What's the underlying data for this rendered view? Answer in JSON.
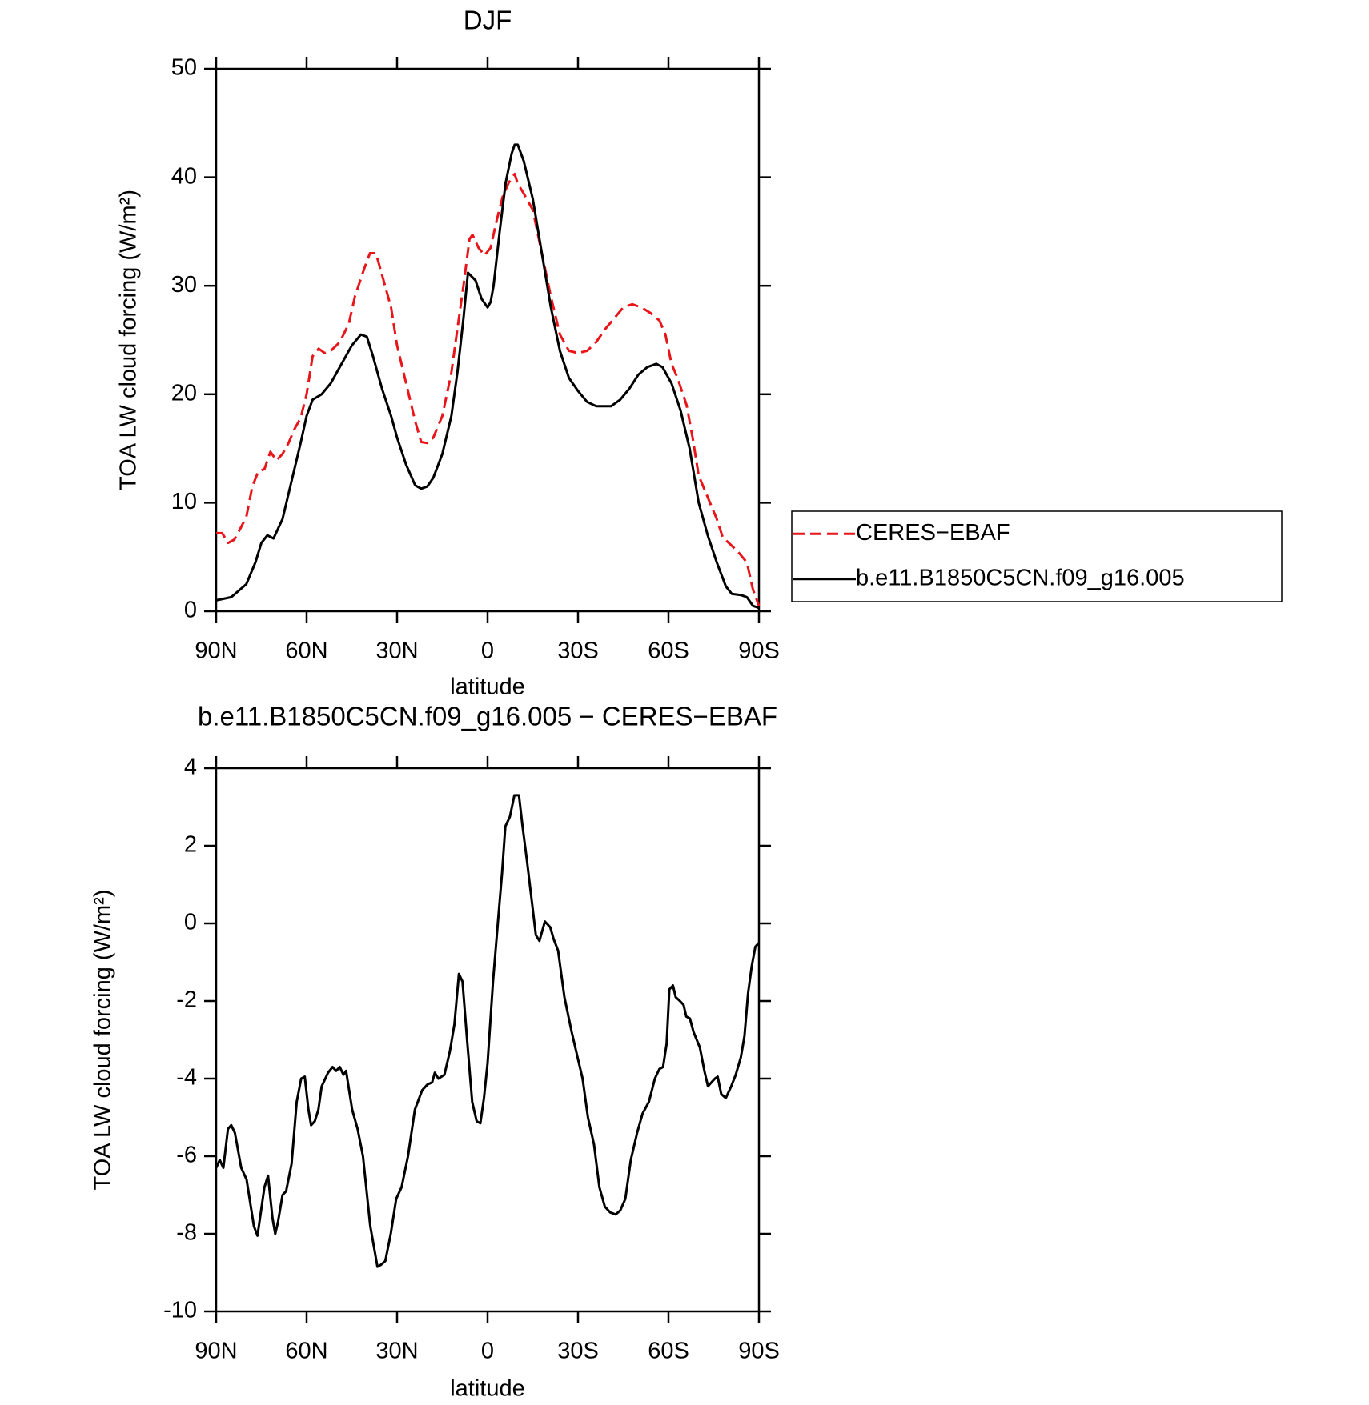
{
  "chart_data": [
    {
      "type": "line",
      "title": "DJF",
      "xlabel": "latitude",
      "ylabel": "TOA LW cloud forcing (W/m²)",
      "xlim": [
        90,
        -90
      ],
      "ylim": [
        0,
        50
      ],
      "xticks": [
        {
          "value": 90,
          "label": "90N"
        },
        {
          "value": 60,
          "label": "60N"
        },
        {
          "value": 30,
          "label": "30N"
        },
        0,
        {
          "value": -30,
          "label": "30S"
        },
        {
          "value": -60,
          "label": "60S"
        },
        {
          "value": -90,
          "label": "90S"
        }
      ],
      "yticks": [
        0,
        10,
        20,
        30,
        40,
        50
      ],
      "legend": "right",
      "series": [
        {
          "name": "CERES−EBAF",
          "color": "#e8161a",
          "linestyle": "dashed",
          "x": [
            90,
            88,
            86,
            84,
            82,
            80,
            78,
            76,
            74,
            72,
            70,
            68,
            66,
            64,
            62,
            60,
            58,
            56,
            54,
            52,
            49,
            46,
            44,
            41,
            39,
            37,
            35,
            32,
            30,
            27,
            24,
            22,
            20,
            18,
            15,
            12,
            10,
            8,
            6,
            5,
            3,
            1,
            -1,
            -3,
            -5,
            -7,
            -9,
            -10,
            -12,
            -15,
            -18,
            -21,
            -24,
            -27,
            -30,
            -33,
            -36,
            -39,
            -42,
            -45,
            -48,
            -51,
            -54,
            -57,
            -59,
            -61,
            -63,
            -66,
            -68,
            -70,
            -73,
            -76,
            -78,
            -80,
            -83,
            -86,
            -88,
            -90
          ],
          "values": [
            7.2,
            7.2,
            6.3,
            6.6,
            7.6,
            8.7,
            11.5,
            12.9,
            13.1,
            14.7,
            13.9,
            14.5,
            15.5,
            16.8,
            17.8,
            20,
            23.5,
            24.2,
            23.8,
            24,
            24.8,
            26.5,
            29,
            31.5,
            33,
            33,
            31,
            28,
            24.5,
            21,
            17.5,
            15.6,
            15.5,
            16,
            18,
            22,
            26,
            30,
            34.3,
            34.7,
            33.5,
            32.8,
            33.5,
            36,
            38.2,
            39.5,
            40.3,
            39.4,
            38.5,
            37,
            33,
            29,
            25.5,
            24,
            23.8,
            24,
            24.8,
            26,
            27,
            28,
            28.3,
            28,
            27.5,
            26.8,
            25.5,
            22.8,
            21.5,
            19,
            16,
            12.5,
            10.5,
            8.5,
            6.8,
            6.3,
            5.5,
            4.5,
            2,
            0.5
          ]
        },
        {
          "name": "b.e11.B1850C5CN.f09_g16.005",
          "color": "#000000",
          "linestyle": "solid",
          "x": [
            90,
            85,
            80,
            77,
            75,
            73,
            71,
            68,
            65,
            62,
            60,
            58,
            55,
            52,
            49,
            45,
            42,
            40,
            38,
            35,
            32,
            30,
            27,
            24,
            22,
            20,
            18,
            15,
            12,
            10,
            8,
            6.5,
            4,
            2,
            0,
            -1,
            -2,
            -4,
            -6,
            -8,
            -9,
            -10,
            -12,
            -15,
            -18,
            -21,
            -24,
            -27,
            -30,
            -33,
            -36,
            -39,
            -41,
            -44,
            -47,
            -50,
            -53,
            -56,
            -58,
            -61,
            -64,
            -67,
            -70,
            -73,
            -76,
            -79,
            -81,
            -84,
            -86,
            -88,
            -90
          ],
          "values": [
            1,
            1.3,
            2.5,
            4.5,
            6.3,
            7,
            6.7,
            8.5,
            12,
            15.5,
            18,
            19.5,
            20,
            21,
            22.5,
            24.5,
            25.5,
            25.3,
            23.5,
            20.5,
            18,
            16,
            13.5,
            11.6,
            11.3,
            11.5,
            12.3,
            14.5,
            18,
            22,
            27,
            31.2,
            30.5,
            28.8,
            28,
            28.5,
            30,
            35,
            39.5,
            42.2,
            43,
            43,
            41.5,
            38,
            33,
            28,
            24,
            21.5,
            20.3,
            19.3,
            18.9,
            18.9,
            18.9,
            19.5,
            20.5,
            21.8,
            22.5,
            22.8,
            22.5,
            21,
            18.5,
            15,
            10,
            7,
            4.5,
            2.3,
            1.6,
            1.5,
            1.3,
            0.5,
            0.3
          ]
        }
      ]
    },
    {
      "type": "line",
      "title": "b.e11.B1850C5CN.f09_g16.005 − CERES−EBAF",
      "xlabel": "latitude",
      "ylabel": "TOA LW cloud forcing (W/m²)",
      "xlim": [
        90,
        -90
      ],
      "ylim": [
        -10,
        4
      ],
      "xticks": [
        {
          "value": 90,
          "label": "90N"
        },
        {
          "value": 60,
          "label": "60N"
        },
        {
          "value": 30,
          "label": "30N"
        },
        0,
        {
          "value": -30,
          "label": "30S"
        },
        {
          "value": -60,
          "label": "60S"
        },
        {
          "value": -90,
          "label": "90S"
        }
      ],
      "yticks": [
        -10,
        -8,
        -6,
        -4,
        -2,
        0,
        2,
        4
      ],
      "series": [
        {
          "color": "#000000",
          "linestyle": "solid",
          "x": [
            90,
            88.8,
            87.6,
            86.1,
            85,
            83.8,
            81.7,
            79.9,
            77.5,
            76.3,
            74,
            72.8,
            71.3,
            70.4,
            69.5,
            68,
            66.8,
            65,
            63.3,
            61.8,
            60.6,
            59.4,
            58.5,
            57.3,
            56.1,
            55,
            52.9,
            51.4,
            50.2,
            49,
            47.8,
            46.9,
            44.9,
            43.1,
            41.3,
            38.9,
            36.5,
            35.4,
            33.9,
            32.1,
            30.3,
            28.5,
            26.4,
            24.1,
            21.7,
            19.9,
            18.4,
            17.5,
            16.3,
            14.3,
            12.5,
            11,
            9.5,
            8.3,
            6.8,
            5.1,
            3.6,
            2.4,
            1.2,
            0,
            -1.8,
            -3.6,
            -4.8,
            -5.9,
            -7.4,
            -8.9,
            -10.4,
            -11.6,
            -13.1,
            -14.8,
            -16,
            -17.2,
            -19,
            -20.8,
            -21.9,
            -23.4,
            -25.5,
            -27.9,
            -30,
            -31.5,
            -33.3,
            -35.3,
            -37.1,
            -38.9,
            -40.7,
            -42.5,
            -44,
            -45.7,
            -47.5,
            -49.6,
            -51.4,
            -53.5,
            -55.5,
            -57,
            -58.2,
            -59.4,
            -60.3,
            -61.5,
            -62.4,
            -63.8,
            -65,
            -65.9,
            -67.1,
            -68.3,
            -70.4,
            -71.9,
            -73.1,
            -74.2,
            -75.4,
            -76.3,
            -77.5,
            -79,
            -80.8,
            -82.3,
            -84,
            -85.2,
            -86.4,
            -87.6,
            -88.8,
            -90
          ],
          "values": [
            -6.3,
            -6.1,
            -6.3,
            -5.3,
            -5.2,
            -5.4,
            -6.3,
            -6.6,
            -7.8,
            -8.05,
            -6.8,
            -6.5,
            -7.6,
            -8,
            -7.7,
            -7,
            -6.9,
            -6.2,
            -4.6,
            -4,
            -3.95,
            -4.8,
            -5.2,
            -5.1,
            -4.8,
            -4.2,
            -3.85,
            -3.7,
            -3.8,
            -3.7,
            -3.9,
            -3.8,
            -4.8,
            -5.3,
            -6,
            -7.8,
            -8.85,
            -8.8,
            -8.7,
            -8,
            -7.1,
            -6.8,
            -6,
            -4.8,
            -4.3,
            -4.15,
            -4.1,
            -3.85,
            -4,
            -3.9,
            -3.3,
            -2.6,
            -1.3,
            -1.5,
            -3,
            -4.6,
            -5.1,
            -5.15,
            -4.5,
            -3.6,
            -1.5,
            0.2,
            1.3,
            2.5,
            2.75,
            3.3,
            3.3,
            2.5,
            1.6,
            0.5,
            -0.3,
            -0.45,
            0.05,
            -0.1,
            -0.4,
            -0.7,
            -1.9,
            -2.8,
            -3.5,
            -4,
            -5,
            -5.7,
            -6.8,
            -7.3,
            -7.45,
            -7.5,
            -7.4,
            -7.1,
            -6.1,
            -5.4,
            -4.9,
            -4.6,
            -4,
            -3.75,
            -3.7,
            -3.1,
            -1.7,
            -1.6,
            -1.9,
            -2,
            -2.1,
            -2.4,
            -2.45,
            -2.8,
            -3.2,
            -3.8,
            -4.2,
            -4.1,
            -4,
            -3.95,
            -4.4,
            -4.5,
            -4.2,
            -3.9,
            -3.45,
            -2.9,
            -1.8,
            -1.1,
            -0.6,
            -0.5
          ]
        }
      ]
    }
  ]
}
